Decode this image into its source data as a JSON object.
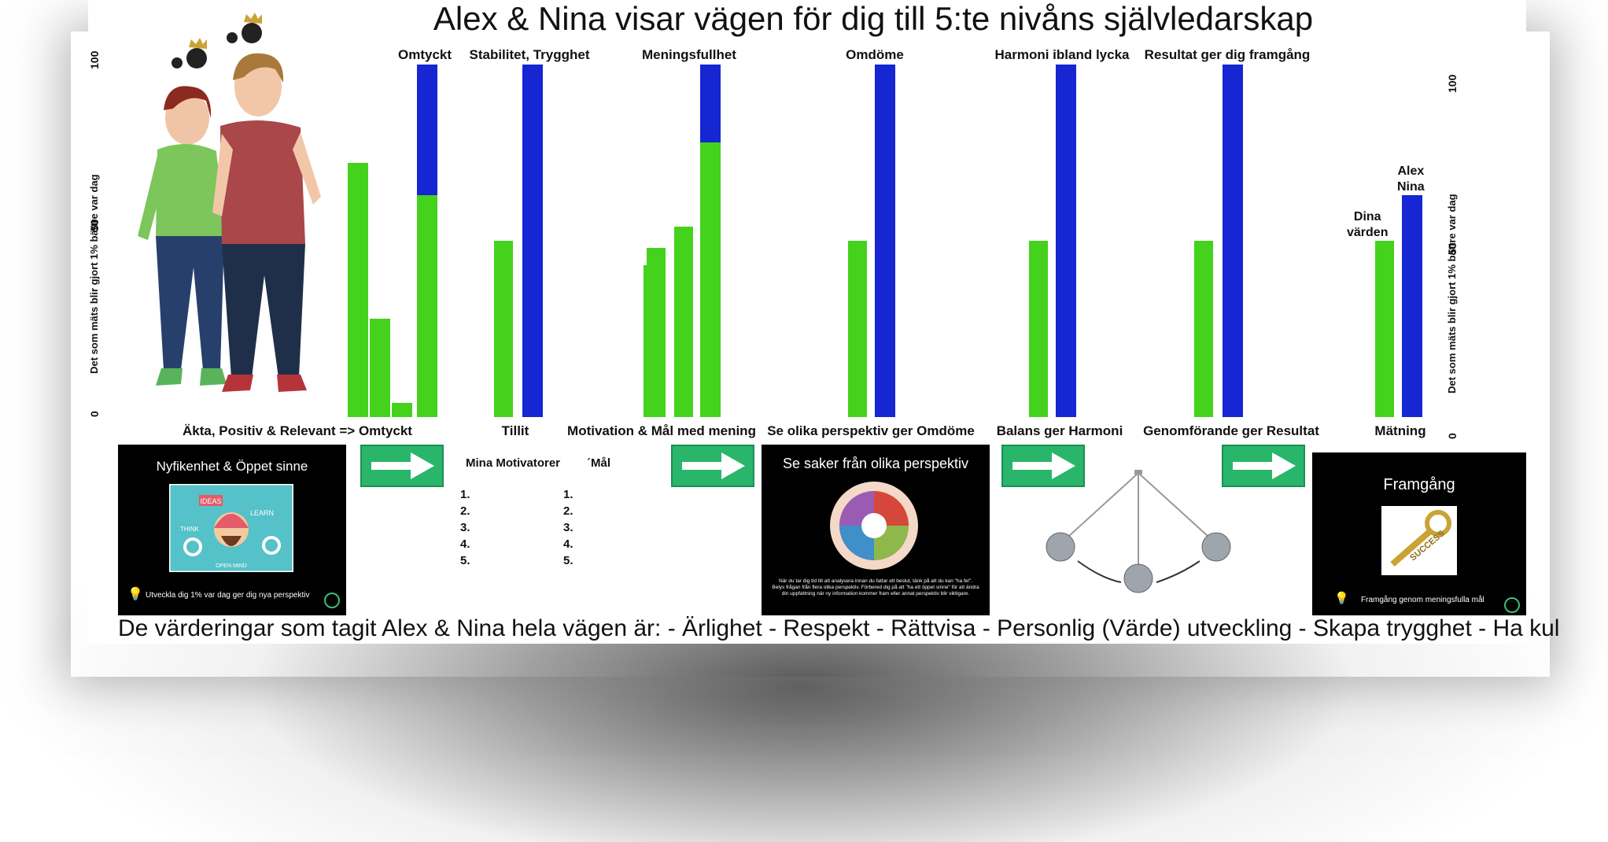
{
  "title": "Alex & Nina visar vägen för dig till 5:te nivåns självledarskap",
  "left_axis": {
    "label": "Det som mäts blir gjort   1% bättre var dag",
    "ticks": [
      "100",
      "50",
      "0"
    ]
  },
  "right_axis": {
    "label": "Det som mäts blir gjort   1% bättre var dag",
    "ticks": [
      "100",
      "50",
      "0"
    ]
  },
  "chart_data": {
    "type": "bar",
    "ylim": [
      0,
      100
    ],
    "groups": [
      {
        "top_label": "Omtyckt",
        "bottom_label": "Äkta, Positiv & Relevant => Omtyckt",
        "green_values": [
          72,
          28,
          4
        ],
        "blue_total": 100,
        "blue_green_overlap": 63
      },
      {
        "top_label": "Stabilitet, Trygghet",
        "bottom_label": "Tillit",
        "green_values": [
          50
        ],
        "blue_total": 100
      },
      {
        "top_label": "Meningsfullhet",
        "bottom_label": "Motivation & Mål med mening",
        "green_values": [
          43,
          48,
          54,
          78
        ],
        "blue_total": 100
      },
      {
        "top_label": "Omdöme",
        "bottom_label": "Se olika perspektiv ger  Omdöme",
        "green_values": [
          50
        ],
        "blue_total": 100
      },
      {
        "top_label": "Harmoni ibland lycka",
        "bottom_label": "Balans  ger  Harmoni",
        "green_values": [
          50
        ],
        "blue_total": 100
      },
      {
        "top_label": "Resultat ger dig framgång",
        "bottom_label": "Genomförande ger Resultat",
        "green_values": [
          50
        ],
        "blue_total": 100
      },
      {
        "top_label": "",
        "bottom_label": "Mätning",
        "green_values": [
          50
        ],
        "blue_total": 63,
        "green_label": "Dina\nvärden",
        "blue_label": "Alex\nNina"
      }
    ],
    "colors": {
      "green": "#44d21c",
      "blue": "#1526d2"
    }
  },
  "panels": {
    "nyfikenhet": {
      "title": "Nyfikenhet & Öppet sinne",
      "caption": "Utveckla dig 1% var dag ger dig nya perspektiv",
      "image_words": [
        "IDEAS",
        "LEARN",
        "THINK",
        "OPEN MIND"
      ]
    },
    "perspektiv": {
      "title": "Se saker från olika perspektiv",
      "caption_line1": "När du tar dig tid till att analysera innan du fattar ett beslut, tänk på att du kan \"ha fel\".",
      "caption_line2": "Belys frågan från flera olika perspektiv. Förbered dig på att \"ha ett öppet sinne\" för att ändra",
      "caption_line3": "din uppfattning när ny information kommer fram eller annat perspektiv blir viktigare."
    },
    "framgang": {
      "title": "Framgång",
      "caption": "Framgång genom meningsfulla mål",
      "image_word": "SUCCESS"
    }
  },
  "motivators": {
    "header_left": "Mina Motivatorer",
    "header_right": "´Mål",
    "items": [
      "1.",
      "2.",
      "3.",
      "4.",
      "5."
    ]
  },
  "footer": "De värderingar  som tagit Alex & Nina hela vägen är: - Ärlighet - Respekt -  Rättvisa -  Personlig (Värde) utveckling -  Skapa trygghet -  Ha kul"
}
